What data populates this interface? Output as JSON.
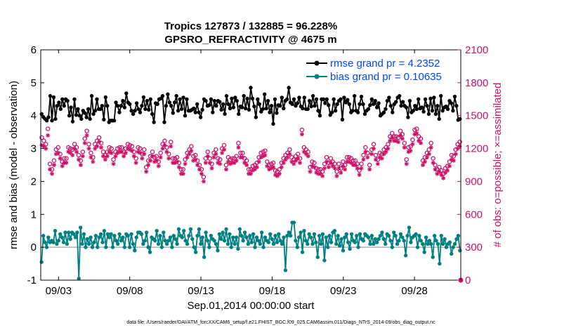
{
  "chart_data": {
    "type": "line",
    "title_line1": "Tropics 127873 / 132885 = 96.228%",
    "title_line2": "GPSRO_REFRACTIVITY @ 4675 m",
    "xlabel": "Sep.01,2014 00:00:00 start",
    "ylabel_left": "rmse and bias (model - observation)",
    "ylabel_right": "# of obs: o=possible; ×=assimilated",
    "footer": "data file: /Users/raeder/DAI/ATM_forcXX/CAM6_setup/f.e21.FHIST_BGC.f09_025.CAM6assim.011/Diags_NTrS_2014-09/obs_diag_output.nc",
    "x_tick_labels": [
      "09/03",
      "09/08",
      "09/13",
      "09/18",
      "09/23",
      "09/28"
    ],
    "x_tick_days": [
      2,
      7,
      12,
      17,
      22,
      27
    ],
    "xlim": [
      0.75,
      30.25
    ],
    "ylim_left": [
      -1,
      6
    ],
    "yticks_left": [
      "-1",
      "0",
      "1",
      "2",
      "3",
      "4",
      "5",
      "6"
    ],
    "ylim_right": [
      0,
      2100
    ],
    "yticks_right": [
      "0",
      "300",
      "600",
      "900",
      "1200",
      "1500",
      "1800",
      "2100"
    ],
    "legend": [
      {
        "label": "rmse grand pr = 4.2352",
        "color": "#000000"
      },
      {
        "label": "bias grand pr = 0.10635",
        "color": "#007f7f"
      }
    ],
    "colors": {
      "rmse": "#000000",
      "bias": "#008080",
      "obs": "#cc1166",
      "zero_line": "#b0b0b0",
      "legend_text": "#0044ff"
    },
    "series": [
      {
        "name": "rmse",
        "axis": "left",
        "values": [
          4.05,
          3.96,
          3.9,
          3.85,
          3.95,
          4.6,
          3.85,
          4.56,
          3.9,
          4.3,
          4.4,
          4.2,
          4.5,
          4.3,
          4.5,
          4.45,
          4.0,
          4.25,
          3.82,
          4.5,
          4.02,
          4.2,
          4.0,
          3.9,
          4.15,
          4.08,
          3.95,
          4.2,
          3.9,
          4.6,
          4.05,
          4.15,
          4.5,
          4.2,
          4.2,
          4.3,
          3.88,
          4.56,
          4.3,
          3.8,
          3.85,
          3.85,
          3.85,
          4.4,
          4.3,
          4.1,
          4.3,
          4.45,
          4.25,
          4.68,
          4.4,
          4.35,
          4.15,
          4.05,
          4.15,
          4.38,
          4.2,
          4.1,
          4.3,
          4.56,
          4.2,
          4.45,
          4.18,
          4.5,
          4.05,
          3.8,
          4.38,
          4.35,
          4.5,
          4.52,
          4.6,
          3.8,
          4.3,
          4.65,
          4.4,
          4.3,
          4.08,
          4.4,
          4.6,
          4.15,
          4.5,
          4.2,
          4.55,
          4.0,
          4.5,
          4.15,
          4.15,
          4.18,
          4.22,
          4.1,
          4.35,
          4.1,
          3.95,
          4.18,
          4.5,
          4.45,
          4.3,
          4.32,
          4.5,
          4.1,
          4.45,
          4.3,
          4.45,
          4.42,
          4.18,
          4.35,
          4.05,
          4.6,
          4.35,
          4.22,
          4.52,
          4.25,
          4.55,
          4.45,
          4.05,
          4.28,
          4.25,
          4.6,
          4.22,
          4.52,
          4.18,
          4.85,
          4.52,
          4.28,
          3.95,
          4.5,
          4.35,
          4.12,
          4.2,
          4.65,
          4.22,
          4.45,
          4.1,
          4.3,
          3.75,
          4.5,
          4.08,
          4.32,
          4.3,
          4.55,
          4.22,
          4.45,
          4.5,
          4.85,
          4.4,
          4.35,
          4.5,
          4.3,
          4.38,
          4.55,
          4.28,
          4.22,
          4.55,
          4.2,
          4.2,
          4.45,
          4.28,
          4.6,
          4.3,
          4.5,
          4.15,
          4.0,
          4.5,
          4.5,
          4.38,
          4.5,
          4.32,
          4.02,
          4.1,
          4.5,
          4.15,
          4.35,
          4.45,
          4.5,
          3.88,
          4.55,
          4.4,
          4.48,
          4.35,
          4.1,
          4.15,
          4.6,
          4.15,
          4.1,
          4.35,
          4.58,
          4.35,
          4.05,
          4.15,
          4.2,
          4.32,
          4.5,
          4.35,
          4.45,
          4.25,
          4.38,
          4.0,
          4.05,
          4.1,
          4.2,
          4.45,
          4.55,
          4.3,
          4.1,
          4.35,
          4.42,
          4.55,
          4.6,
          4.3,
          4.42,
          4.3,
          4.25,
          3.95,
          4.45,
          4.1,
          4.15,
          4.3,
          4.2,
          4.5,
          4.22,
          4.25,
          4.12,
          4.5,
          4.3,
          4.05,
          4.52,
          4.15,
          4.55,
          4.05,
          4.3,
          3.9,
          4.6,
          4.15,
          4.25,
          4.28,
          4.2,
          4.45,
          4.38,
          4.15,
          4.58,
          4.3,
          3.87,
          3.9
        ]
      },
      {
        "name": "bias",
        "axis": "left",
        "values": [
          -0.45,
          0.35,
          0.15,
          0.0,
          0.3,
          0.15,
          0.2,
          0.15,
          0.5,
          0.1,
          0.2,
          0.4,
          0.3,
          0.15,
          0.45,
          0.1,
          0.45,
          0.25,
          0.45,
          0.4,
          0.3,
          0.45,
          -0.95,
          0.6,
          0.1,
          0.4,
          0.0,
          0.25,
          0.1,
          0.3,
          0.0,
          0.15,
          0.35,
          0.0,
          0.3,
          0.4,
          0.15,
          0.5,
          0.0,
          0.4,
          0.3,
          0.4,
          0.0,
          0.35,
          0.2,
          0.1,
          0.4,
          0.2,
          0.3,
          0.0,
          0.4,
          0.35,
          0.0,
          0.4,
          0.1,
          -0.1,
          0.3,
          0.45,
          0.45,
          0.4,
          0.1,
          0.2,
          0.45,
          0.0,
          -0.15,
          0.3,
          0.25,
          0.2,
          0.5,
          0.1,
          0.35,
          0.0,
          0.45,
          0.2,
          0.1,
          0.2,
          0.3,
          0.0,
          0.35,
          0.25,
          0.1,
          0.55,
          0.35,
          0.3,
          0.5,
          0.2,
          0.1,
          0.35,
          0.55,
          0.25,
          0.0,
          -0.15,
          0.35,
          0.55,
          0.1,
          0.3,
          -0.3,
          0.45,
          0.2,
          0.0,
          0.35,
          0.25,
          0.2,
          0.1,
          -0.1,
          0.4,
          0.25,
          0.45,
          0.2,
          0.55,
          0.1,
          0.4,
          0.0,
          0.3,
          0.1,
          0.3,
          -0.05,
          0.55,
          0.35,
          0.2,
          0.45,
          0.3,
          0.1,
          0.35,
          0.15,
          0.4,
          0.0,
          0.3,
          0.2,
          0.1,
          0.45,
          0.0,
          0.3,
          0.2,
          0.15,
          0.4,
          0.25,
          0.1,
          0.35,
          0.15,
          0.4,
          0.2,
          0.1,
          0.3,
          -0.7,
          0.35,
          0.45,
          0.35,
          0.75,
          0.75,
          0.2,
          0.0,
          0.3,
          0.45,
          -0.15,
          0.5,
          0.2,
          0.1,
          0.4,
          0.3,
          0.1,
          0.4,
          0.15,
          -0.3,
          0.35,
          0.1,
          0.4,
          -0.4,
          0.3,
          0.0,
          0.35,
          0.15,
          0.45,
          0.5,
          0.1,
          0.35,
          0.05,
          0.25,
          -0.1,
          0.3,
          0.4,
          0.15,
          -0.05,
          0.4,
          0.2,
          0.15,
          0.35,
          0.0,
          0.4,
          0.25,
          0.2,
          0.4,
          0.35,
          0.3,
          0.1,
          0.35,
          0.1,
          0.25,
          0.15,
          0.25,
          0.35,
          0.45,
          0.25,
          0.1,
          0.4,
          0.35,
          0.2,
          0.0,
          0.45,
          0.35,
          0.1,
          0.2,
          0.4,
          0.3,
          0.2,
          -0.25,
          0.35,
          0.6,
          0.15,
          0.3,
          0.35,
          0.4,
          0.0,
          0.35,
          0.2,
          0.1,
          -0.15,
          0.3,
          0.1,
          0.2,
          0.1,
          -0.3,
          0.35,
          0.2,
          0.1,
          -0.5,
          0.35,
          0.1,
          0.25,
          0.0,
          0.1,
          0.15,
          -0.2,
          0.0,
          0.1,
          0.25,
          0.35,
          -0.1
        ]
      },
      {
        "name": "possible",
        "axis": "right",
        "marker": "o",
        "values": [
          1300,
          1270,
          1240,
          1380,
          1060,
          1010,
          1090,
          1190,
          1210,
          1150,
          1080,
          1110,
          1110,
          1210,
          1200,
          1190,
          1240,
          1210,
          1140,
          1090,
          1170,
          1290,
          1360,
          1240,
          1160,
          1120,
          1240,
          1270,
          1300,
          1250,
          1170,
          1140,
          1170,
          1210,
          1200,
          1100,
          1170,
          1200,
          1210,
          1210,
          1170,
          1200,
          1240,
          1230,
          1220,
          1170,
          1110,
          1210,
          1200,
          1150,
          1190,
          1030,
          1090,
          1130,
          1170,
          1120,
          1130,
          1080,
          1160,
          1240,
          1270,
          1210,
          1150,
          1260,
          1110,
          1110,
          1120,
          1070,
          1010,
          1010,
          1100,
          1160,
          1190,
          1220,
          1130,
          1140,
          1090,
          1050,
          1010,
          940,
          1110,
          1170,
          1110,
          1060,
          1160,
          1190,
          1110,
          1100,
          1200,
          1230,
          1050,
          1120,
          1100,
          1110,
          1110,
          1130,
          1250,
          1160,
          1160,
          1110,
          1090,
          1010,
          1010,
          1040,
          1050,
          1070,
          1120,
          1160,
          1170,
          1180,
          1080,
          1050,
          1060,
          1070,
          1000,
          990,
          1010,
          1070,
          1110,
          1140,
          1160,
          1190,
          1120,
          1100,
          1130,
          1150,
          1110,
          1370,
          1210,
          1190,
          1170,
          1030,
          1080,
          1070,
          1020,
          1010,
          1010,
          990,
          1060,
          1120,
          1070,
          1110,
          1080,
          1060,
          990,
          1060,
          1020,
          1080,
          1050,
          1120,
          1120,
          1110,
          1090,
          1090,
          1060,
          1000,
          1060,
          1140,
          1210,
          1160,
          1050,
          1190,
          1240,
          1140,
          1100,
          1160,
          1150,
          1190,
          1210,
          1240,
          1310,
          1340,
          1310,
          1310,
          1300,
          1360,
          1330,
          1250,
          1100,
          1210,
          1220,
          1280,
          1370,
          1380,
          1310,
          1290,
          1090,
          1120,
          1160,
          1190,
          1250,
          1110,
          1050,
          1010,
          1030,
          1000,
          970,
          1020,
          1040,
          1080,
          1140,
          1130,
          1190,
          1240,
          1260
        ]
      },
      {
        "name": "assimilated",
        "axis": "right",
        "marker": "x",
        "values": [
          1230,
          1220,
          1200,
          1320,
          1010,
          970,
          1050,
          1150,
          1160,
          1110,
          1040,
          1070,
          1070,
          1170,
          1160,
          1140,
          1200,
          1170,
          1100,
          1050,
          1130,
          1250,
          1320,
          1200,
          1120,
          1080,
          1200,
          1220,
          1260,
          1210,
          1130,
          1100,
          1130,
          1170,
          1160,
          1060,
          1130,
          1160,
          1170,
          1170,
          1130,
          1160,
          1200,
          1190,
          1180,
          1130,
          1070,
          1170,
          1160,
          1110,
          1150,
          990,
          1050,
          1090,
          1130,
          1080,
          1090,
          1040,
          1120,
          1200,
          1230,
          1170,
          1110,
          1220,
          1070,
          1070,
          1080,
          1030,
          970,
          970,
          1060,
          1120,
          1150,
          1180,
          1090,
          1100,
          1050,
          1010,
          970,
          900,
          1070,
          1130,
          1070,
          1020,
          1120,
          1150,
          1070,
          1060,
          1160,
          1190,
          1010,
          1080,
          1060,
          1070,
          1070,
          1090,
          1210,
          1120,
          1120,
          1070,
          1050,
          970,
          970,
          1000,
          1010,
          1030,
          1080,
          1120,
          1130,
          1140,
          1040,
          1010,
          1020,
          1030,
          960,
          950,
          970,
          1030,
          1070,
          1100,
          1120,
          1150,
          1080,
          1060,
          1090,
          1110,
          1070,
          1330,
          1170,
          1150,
          1130,
          990,
          1040,
          1030,
          980,
          970,
          970,
          950,
          1020,
          1080,
          1030,
          1070,
          1040,
          1020,
          950,
          1020,
          980,
          1040,
          1010,
          1080,
          1080,
          1070,
          1050,
          1050,
          1020,
          960,
          1020,
          1100,
          1170,
          1120,
          1010,
          1150,
          1200,
          1100,
          1060,
          1120,
          1110,
          1150,
          1170,
          1200,
          1270,
          1300,
          1270,
          1270,
          1260,
          1320,
          1290,
          1210,
          1060,
          1170,
          1180,
          1240,
          1330,
          1340,
          1270,
          1250,
          1050,
          1080,
          1120,
          1150,
          1210,
          1070,
          1010,
          970,
          990,
          960,
          930,
          980,
          1000,
          1040,
          1100,
          1090,
          1150,
          1200,
          1220
        ]
      }
    ]
  }
}
